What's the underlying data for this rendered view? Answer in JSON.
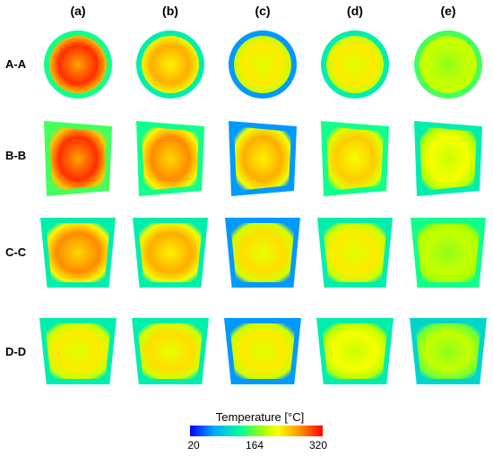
{
  "columns": [
    "(a)",
    "(b)",
    "(c)",
    "(d)",
    "(e)"
  ],
  "rows": [
    "A-A",
    "B-B",
    "C-C",
    "D-D"
  ],
  "colorbar": {
    "title": "Temperature [°C]",
    "ticks": [
      "20",
      "164",
      "320"
    ],
    "colors": [
      "#0000ff",
      "#00aaff",
      "#00ff99",
      "#aaff00",
      "#ffff00",
      "#ff9900",
      "#ff0000"
    ]
  },
  "panels": [
    {
      "row": "A-A",
      "shape": "circle",
      "hot": [
        0.95,
        0.8,
        0.7,
        0.7,
        0.55
      ],
      "rim": [
        0.35,
        0.3,
        0.15,
        0.3,
        0.4
      ]
    },
    {
      "row": "B-B",
      "shape": "trapezoid-skew",
      "hot": [
        0.95,
        0.85,
        0.8,
        0.75,
        0.65
      ],
      "rim": [
        0.4,
        0.35,
        0.15,
        0.35,
        0.3
      ]
    },
    {
      "row": "C-C",
      "shape": "trapezoid-down",
      "hot": [
        0.85,
        0.8,
        0.72,
        0.7,
        0.55
      ],
      "rim": [
        0.3,
        0.3,
        0.15,
        0.3,
        0.35
      ]
    },
    {
      "row": "D-D",
      "shape": "trapezoid-down",
      "hot": [
        0.7,
        0.72,
        0.7,
        0.65,
        0.55
      ],
      "rim": [
        0.3,
        0.3,
        0.15,
        0.3,
        0.25
      ]
    }
  ]
}
